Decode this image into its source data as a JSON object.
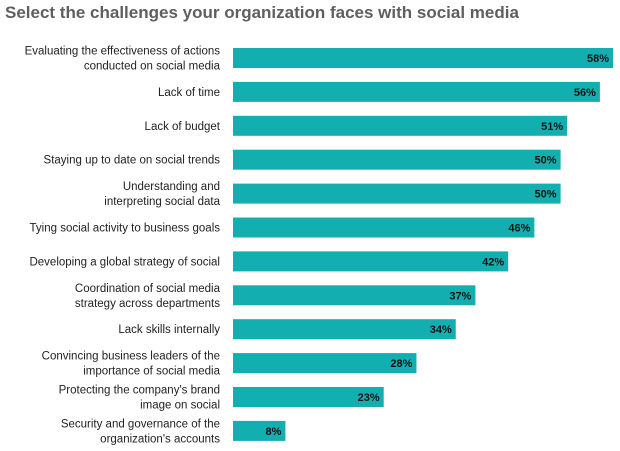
{
  "chart_data": {
    "type": "bar",
    "orientation": "horizontal",
    "title": "Select the challenges your organization faces with social media",
    "categories": [
      [
        "Evaluating the effectiveness of actions",
        "conducted on social media"
      ],
      [
        "Lack of time"
      ],
      [
        "Lack of budget"
      ],
      [
        "Staying up to date on social trends"
      ],
      [
        "Understanding and",
        "interpreting social data"
      ],
      [
        "Tying social activity to business goals"
      ],
      [
        "Developing a global strategy of social"
      ],
      [
        "Coordination of social media",
        "strategy across departments"
      ],
      [
        "Lack skills internally"
      ],
      [
        "Convincing business leaders of the",
        "importance of social media"
      ],
      [
        "Protecting the company's brand",
        "image on social"
      ],
      [
        "Security and governance of the",
        "organization's accounts"
      ]
    ],
    "values": [
      58,
      56,
      51,
      50,
      50,
      46,
      42,
      37,
      34,
      28,
      23,
      8
    ],
    "value_labels": [
      "58%",
      "56%",
      "51%",
      "50%",
      "50%",
      "46%",
      "42%",
      "37%",
      "34%",
      "28%",
      "23%",
      "8%"
    ],
    "xlim": [
      0,
      58
    ],
    "unit": "%",
    "grid": false,
    "legend": "none",
    "bar_color": "#13aeb0"
  }
}
